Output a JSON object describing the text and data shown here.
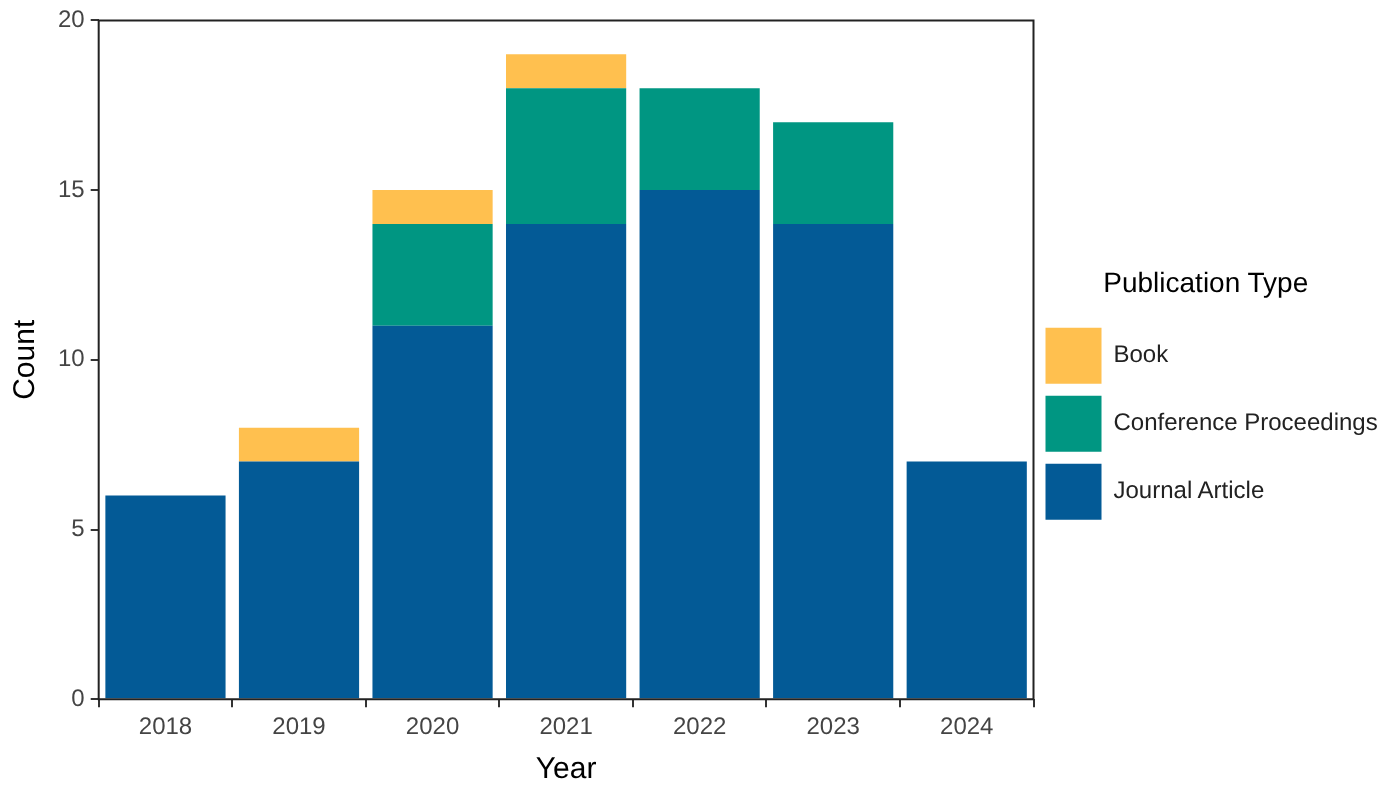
{
  "chart_data": {
    "type": "bar",
    "xlabel": "Year",
    "ylabel": "Count",
    "legend_title": "Publication Type",
    "categories": [
      "2018",
      "2019",
      "2020",
      "2021",
      "2022",
      "2023",
      "2024"
    ],
    "stacked": true,
    "ylim": [
      0,
      20
    ],
    "yticks": [
      0,
      5,
      10,
      15,
      20
    ],
    "grid": false,
    "legend": "right",
    "series": [
      {
        "name": "Journal Article",
        "color": "#035a96",
        "values": [
          6,
          7,
          11,
          14,
          15,
          14,
          7
        ]
      },
      {
        "name": "Conference Proceedings",
        "color": "#009682",
        "values": [
          0,
          0,
          3,
          4,
          3,
          3,
          0
        ]
      },
      {
        "name": "Book",
        "color": "#ffc04f",
        "values": [
          0,
          1,
          1,
          1,
          0,
          0,
          0
        ]
      }
    ]
  }
}
